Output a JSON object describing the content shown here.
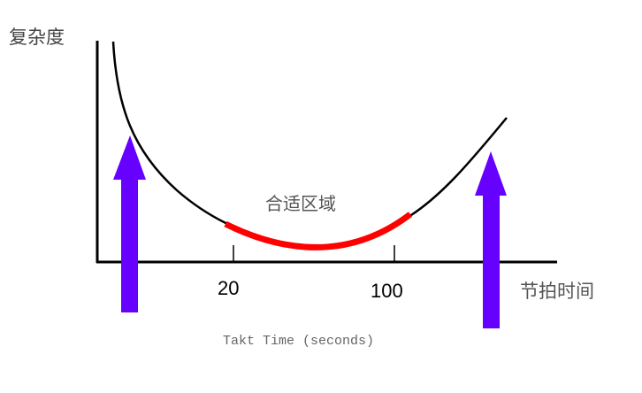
{
  "diagram": {
    "y_axis_label": "复杂度",
    "x_axis_label": "节拍时间",
    "x_axis_subtitle": "Takt Time (seconds)",
    "ticks": [
      "20",
      "100"
    ],
    "optimal_zone_label": "合适区域",
    "colors": {
      "curve": "#000000",
      "optimal_zone": "#ff0000",
      "arrows": "#6600ff",
      "axes": "#000000"
    }
  }
}
